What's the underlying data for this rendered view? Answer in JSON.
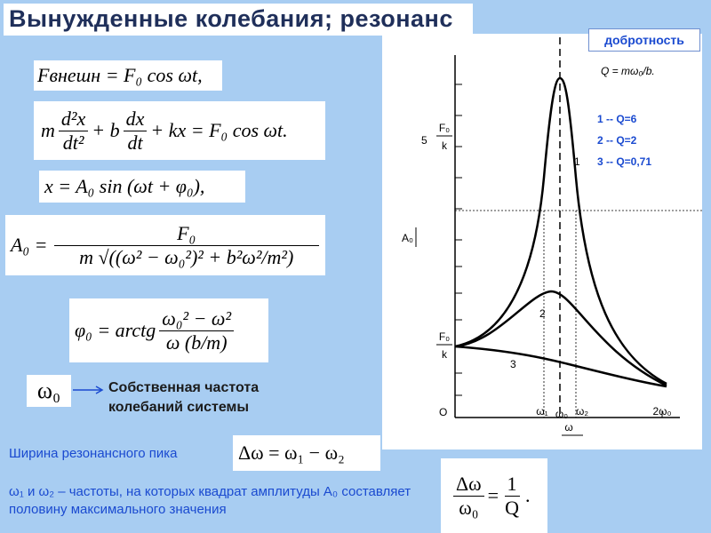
{
  "title": "Вынужденные колебания; резонанс",
  "badge": "добротность",
  "formulas": {
    "force": "Fвнешн = F₀ cos ωt,",
    "equation": {
      "m": "m",
      "d2x": "d²x",
      "dt2": "dt²",
      "plus_b": "+ b",
      "dx": "dx",
      "dt": "dt",
      "rest": "+ kx = F₀ cos ωt."
    },
    "solution": "x = A₀ sin (ωt + φ₀),",
    "amplitude": {
      "lhs": "A₀ =",
      "numerator": "F₀",
      "denominator": "m √((ω² − ω₀²)² + b²ω²/m²)"
    },
    "phase": {
      "lhs": "φ₀ = arctg",
      "numerator": "ω₀² − ω²",
      "denominator": "ω (b/m)"
    }
  },
  "q_formula": "Q = mω₀/b.",
  "legend": [
    "1 -- Q=6",
    "2 -- Q=2",
    "3 -- Q=0,71"
  ],
  "graph": {
    "y_label": "A₀",
    "x_label": "ω",
    "origin": "O",
    "y_marks": [
      {
        "prefix": "5",
        "num": "F₀",
        "den": "k"
      },
      {
        "num": "F₀",
        "den": "k"
      }
    ],
    "x_marks": [
      "ω₁",
      "ω₀",
      "ω₂",
      "2ω₀"
    ],
    "curve_labels": [
      "1",
      "2",
      "3"
    ]
  },
  "eigen": {
    "symbol": "ω₀",
    "lines": [
      "Собственная частота",
      "колебаний системы"
    ]
  },
  "width": {
    "caption": "Ширина резонансного пика",
    "formula": "Δω = ω₁ − ω₂"
  },
  "note": "ω₁ и ω₂ – частоты, на которых квадрат амплитуды A₀ составляет половину максимального значения",
  "ratio": {
    "lhs_num": "Δω",
    "lhs_den": "ω₀",
    "eq": "=",
    "rhs_num": "1",
    "rhs_den": "Q",
    "end": "."
  }
}
